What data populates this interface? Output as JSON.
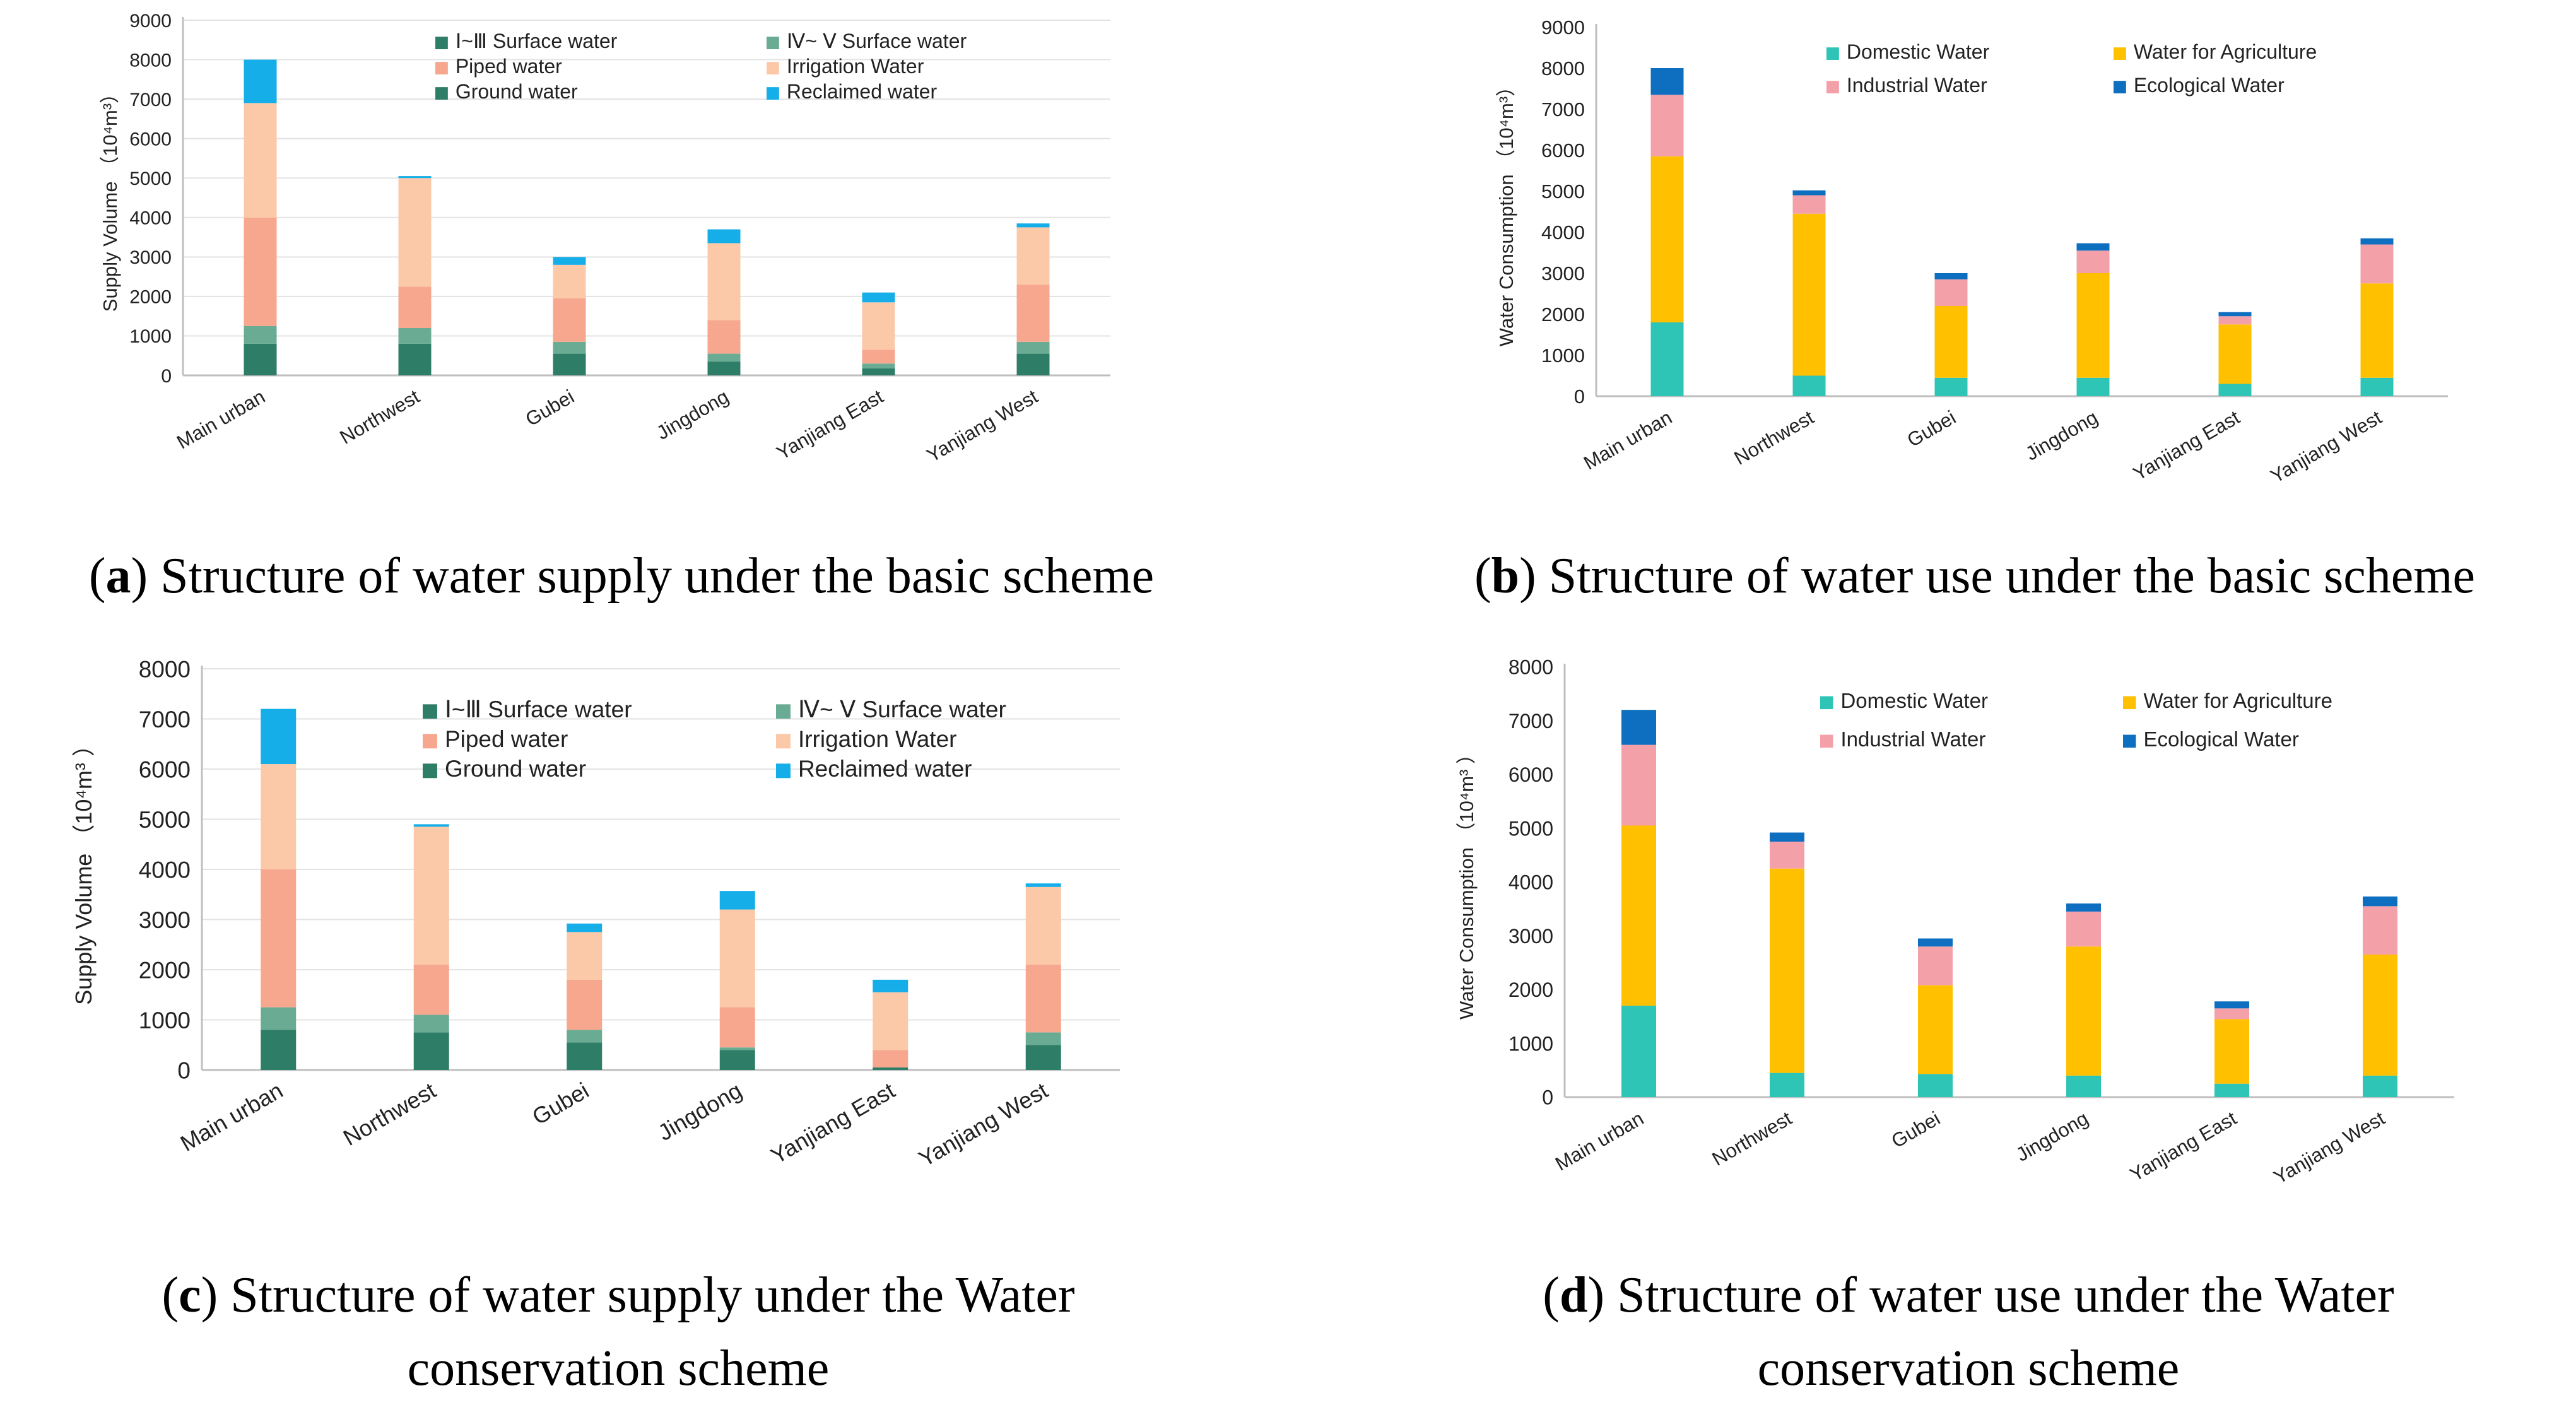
{
  "chart_data": [
    {
      "id": "a",
      "type": "bar",
      "stacked": true,
      "caption_letter": "a",
      "caption": "Structure of water supply under the basic scheme",
      "ylabel": "Supply Volume （10⁴m³）",
      "ylim": [
        0,
        9000
      ],
      "yticks": [
        0,
        1000,
        2000,
        3000,
        4000,
        5000,
        6000,
        7000,
        8000,
        9000
      ],
      "categories": [
        "Main urban",
        "Northwest",
        "Gubei",
        "Jingdong",
        "Yanjiang East",
        "Yanjiang West"
      ],
      "legend_position": "top",
      "series": [
        {
          "name": "Ground water",
          "color": "#2e7d66",
          "values": [
            800,
            800,
            550,
            350,
            180,
            550
          ]
        },
        {
          "name": "Ⅳ~ Ⅴ Surface water",
          "color": "#6aab93",
          "values": [
            450,
            400,
            300,
            200,
            120,
            300
          ]
        },
        {
          "name": "Ⅰ~Ⅲ Surface water",
          "color": "#2e7d66",
          "values": [
            0,
            0,
            0,
            0,
            0,
            0
          ]
        },
        {
          "name": "Piped water",
          "color": "#f6a78e",
          "values": [
            2750,
            1050,
            1100,
            850,
            350,
            1450
          ]
        },
        {
          "name": "Irrigation Water",
          "color": "#fcc9a8",
          "values": [
            2900,
            2750,
            850,
            1950,
            1200,
            1450
          ]
        },
        {
          "name": "Reclaimed water",
          "color": "#16aee8",
          "values": [
            1100,
            50,
            200,
            350,
            250,
            100
          ]
        }
      ],
      "legend": [
        {
          "name": "Ⅰ~Ⅲ Surface water",
          "color": "#2e7d66"
        },
        {
          "name": "Ⅳ~ Ⅴ Surface water",
          "color": "#6aab93"
        },
        {
          "name": "Piped water",
          "color": "#f6a78e"
        },
        {
          "name": "Irrigation Water",
          "color": "#fcc9a8"
        },
        {
          "name": "Ground water",
          "color": "#2e7d66"
        },
        {
          "name": "Reclaimed water",
          "color": "#16aee8"
        }
      ]
    },
    {
      "id": "b",
      "type": "bar",
      "stacked": true,
      "caption_letter": "b",
      "caption": "Structure of water use under the basic scheme",
      "ylabel": "Water Consumption （10⁴m³）",
      "ylim": [
        0,
        9000
      ],
      "yticks": [
        0,
        1000,
        2000,
        3000,
        4000,
        5000,
        6000,
        7000,
        8000,
        9000
      ],
      "categories": [
        "Main urban",
        "Northwest",
        "Gubei",
        "Jingdong",
        "Yanjiang East",
        "Yanjiang West"
      ],
      "legend_position": "top",
      "series": [
        {
          "name": "Domestic Water",
          "color": "#2ec4b6",
          "values": [
            1800,
            500,
            450,
            450,
            300,
            450
          ]
        },
        {
          "name": "Water for Agriculture",
          "color": "#ffc000",
          "values": [
            4050,
            3950,
            1750,
            2550,
            1450,
            2300
          ]
        },
        {
          "name": "Industrial Water",
          "color": "#f4a0a8",
          "values": [
            1500,
            450,
            650,
            550,
            200,
            950
          ]
        },
        {
          "name": "Ecological Water",
          "color": "#0e6fc0",
          "values": [
            650,
            120,
            150,
            180,
            100,
            150
          ]
        }
      ],
      "legend": [
        {
          "name": "Domestic Water",
          "color": "#2ec4b6"
        },
        {
          "name": "Water for Agriculture",
          "color": "#ffc000"
        },
        {
          "name": "Industrial Water",
          "color": "#f4a0a8"
        },
        {
          "name": "Ecological Water",
          "color": "#0e6fc0"
        }
      ]
    },
    {
      "id": "c",
      "type": "bar",
      "stacked": true,
      "caption_letter": "c",
      "caption": "Structure of water supply under the Water conservation scheme",
      "caption_lines": [
        "Structure of water supply under the Water",
        "conservation scheme"
      ],
      "ylabel": "Supply Volume （10⁴m³ ）",
      "ylim": [
        0,
        8000
      ],
      "yticks": [
        0,
        1000,
        2000,
        3000,
        4000,
        5000,
        6000,
        7000,
        8000
      ],
      "categories": [
        "Main urban",
        "Northwest",
        "Gubei",
        "Jingdong",
        "Yanjiang East",
        "Yanjiang West"
      ],
      "legend_position": "top",
      "series": [
        {
          "name": "Ground water",
          "color": "#2e7d66",
          "values": [
            800,
            750,
            550,
            400,
            50,
            500
          ]
        },
        {
          "name": "Ⅳ~ Ⅴ Surface water",
          "color": "#6aab93",
          "values": [
            450,
            350,
            250,
            50,
            0,
            250
          ]
        },
        {
          "name": "Ⅰ~Ⅲ Surface water",
          "color": "#2e7d66",
          "values": [
            0,
            0,
            0,
            0,
            0,
            0
          ]
        },
        {
          "name": "Piped water",
          "color": "#f6a78e",
          "values": [
            2750,
            1000,
            1000,
            800,
            350,
            1350
          ]
        },
        {
          "name": "Irrigation Water",
          "color": "#fcc9a8",
          "values": [
            2100,
            2750,
            950,
            1950,
            1150,
            1550
          ]
        },
        {
          "name": "Reclaimed water",
          "color": "#16aee8",
          "values": [
            1100,
            50,
            170,
            370,
            250,
            70
          ]
        }
      ],
      "legend": [
        {
          "name": "Ⅰ~Ⅲ Surface water",
          "color": "#2e7d66"
        },
        {
          "name": "Ⅳ~ Ⅴ Surface water",
          "color": "#6aab93"
        },
        {
          "name": "Piped water",
          "color": "#f6a78e"
        },
        {
          "name": "Irrigation Water",
          "color": "#fcc9a8"
        },
        {
          "name": "Ground water",
          "color": "#2e7d66"
        },
        {
          "name": "Reclaimed water",
          "color": "#16aee8"
        }
      ]
    },
    {
      "id": "d",
      "type": "bar",
      "stacked": true,
      "caption_letter": "d",
      "caption": "Structure of water use under the Water conservation scheme",
      "caption_lines": [
        "Structure of water use under the Water",
        "conservation scheme"
      ],
      "ylabel": "Water Consumption （10⁴m³ ）",
      "ylim": [
        0,
        8000
      ],
      "yticks": [
        0,
        1000,
        2000,
        3000,
        4000,
        5000,
        6000,
        7000,
        8000
      ],
      "categories": [
        "Main urban",
        "Northwest",
        "Gubei",
        "Jingdong",
        "Yanjiang East",
        "Yanjiang West"
      ],
      "legend_position": "top",
      "series": [
        {
          "name": "Domestic Water",
          "color": "#2ec4b6",
          "values": [
            1700,
            450,
            430,
            400,
            250,
            400
          ]
        },
        {
          "name": "Water for Agriculture",
          "color": "#ffc000",
          "values": [
            3350,
            3800,
            1650,
            2400,
            1200,
            2250
          ]
        },
        {
          "name": "Industrial Water",
          "color": "#f4a0a8",
          "values": [
            1500,
            500,
            720,
            650,
            200,
            900
          ]
        },
        {
          "name": "Ecological Water",
          "color": "#0e6fc0",
          "values": [
            650,
            170,
            150,
            150,
            130,
            180
          ]
        }
      ],
      "legend": [
        {
          "name": "Domestic Water",
          "color": "#2ec4b6"
        },
        {
          "name": "Water for Agriculture",
          "color": "#ffc000"
        },
        {
          "name": "Industrial Water",
          "color": "#f4a0a8"
        },
        {
          "name": "Ecological Water",
          "color": "#0e6fc0"
        }
      ]
    }
  ],
  "captions": {
    "a": {
      "letter": "a",
      "text": "Structure of water supply under the basic scheme"
    },
    "b": {
      "letter": "b",
      "text": "Structure of water use under the basic scheme"
    },
    "c": {
      "letter": "c",
      "line1": "Structure of water supply under the Water",
      "line2": "conservation scheme"
    },
    "d": {
      "letter": "d",
      "line1": "Structure of water use under the Water",
      "line2": "conservation scheme"
    }
  }
}
